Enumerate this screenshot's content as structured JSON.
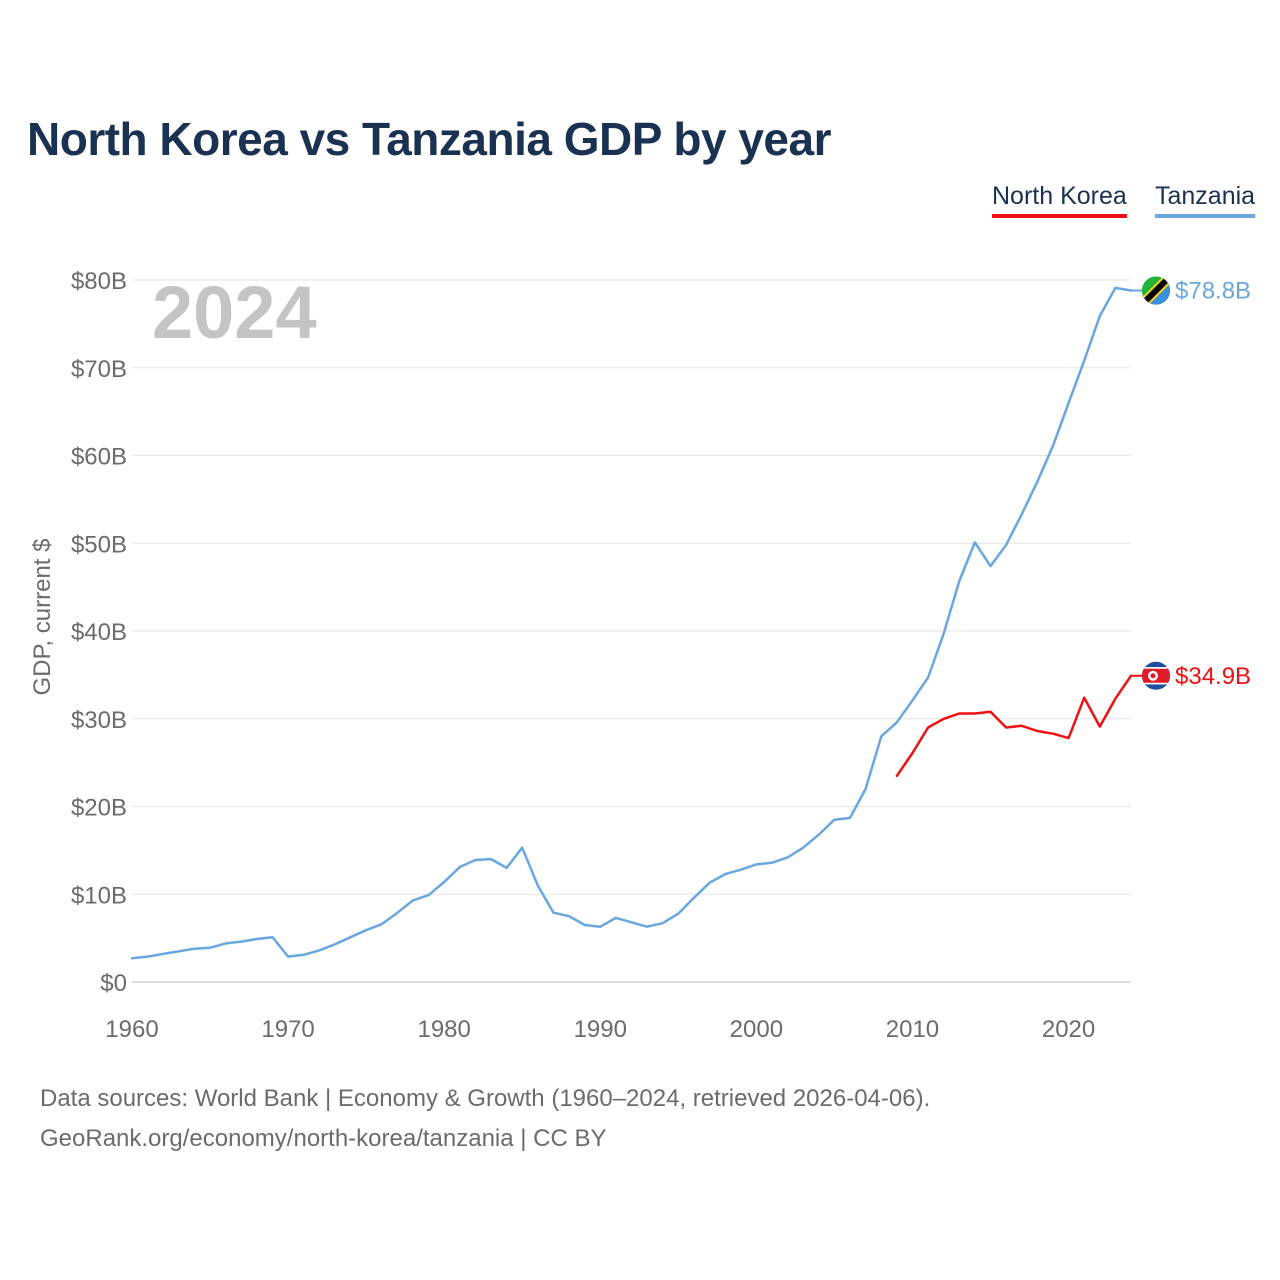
{
  "title": "North Korea vs Tanzania GDP by year",
  "footer": {
    "line1": "Data sources: World Bank | Economy & Growth (1960–2024, retrieved 2026-04-06).",
    "line2": "GeoRank.org/economy/north-korea/tanzania | CC BY"
  },
  "chart_data": {
    "type": "line",
    "title": "North Korea vs Tanzania GDP by year",
    "ylabel": "GDP, current $",
    "xlabel": "",
    "year_label": "2024",
    "xlim": [
      1960,
      2024
    ],
    "ylim": [
      0,
      80
    ],
    "units": "billions of current US$",
    "x_ticks": [
      1960,
      1970,
      1980,
      1990,
      2000,
      2010,
      2020
    ],
    "y_ticks": [
      0,
      10,
      20,
      30,
      40,
      50,
      60,
      70,
      80
    ],
    "y_tick_labels": [
      "$0",
      "$10B",
      "$20B",
      "$30B",
      "$40B",
      "$50B",
      "$60B",
      "$70B",
      "$80B"
    ],
    "legend_position": "top-right",
    "grid": true,
    "series": [
      {
        "name": "North Korea",
        "color": "#ee1111",
        "end_label": "$34.9B",
        "flag_icon": "north-korea-flag-icon",
        "points": [
          [
            2009,
            23.5
          ],
          [
            2010,
            26.1
          ],
          [
            2011,
            29.0
          ],
          [
            2012,
            30.0
          ],
          [
            2013,
            30.6
          ],
          [
            2014,
            30.6
          ],
          [
            2015,
            30.8
          ],
          [
            2016,
            29.0
          ],
          [
            2017,
            29.2
          ],
          [
            2018,
            28.6
          ],
          [
            2019,
            28.3
          ],
          [
            2020,
            27.8
          ],
          [
            2021,
            32.4
          ],
          [
            2022,
            29.1
          ],
          [
            2023,
            32.3
          ],
          [
            2024,
            34.9
          ]
        ]
      },
      {
        "name": "Tanzania",
        "color": "#6aa6e0",
        "end_label": "$78.8B",
        "flag_icon": "tanzania-flag-icon",
        "points": [
          [
            1960,
            2.7
          ],
          [
            1961,
            2.9
          ],
          [
            1962,
            3.2
          ],
          [
            1963,
            3.5
          ],
          [
            1964,
            3.8
          ],
          [
            1965,
            3.9
          ],
          [
            1966,
            4.4
          ],
          [
            1967,
            4.6
          ],
          [
            1968,
            4.9
          ],
          [
            1969,
            5.1
          ],
          [
            1970,
            2.9
          ],
          [
            1971,
            3.1
          ],
          [
            1972,
            3.6
          ],
          [
            1973,
            4.3
          ],
          [
            1974,
            5.1
          ],
          [
            1975,
            5.9
          ],
          [
            1976,
            6.6
          ],
          [
            1977,
            7.9
          ],
          [
            1978,
            9.3
          ],
          [
            1979,
            9.9
          ],
          [
            1980,
            11.4
          ],
          [
            1981,
            13.1
          ],
          [
            1982,
            13.9
          ],
          [
            1983,
            14.0
          ],
          [
            1984,
            13.0
          ],
          [
            1985,
            15.3
          ],
          [
            1986,
            11.0
          ],
          [
            1987,
            7.9
          ],
          [
            1988,
            7.5
          ],
          [
            1989,
            6.5
          ],
          [
            1990,
            6.3
          ],
          [
            1991,
            7.3
          ],
          [
            1992,
            6.8
          ],
          [
            1993,
            6.3
          ],
          [
            1994,
            6.7
          ],
          [
            1995,
            7.8
          ],
          [
            1996,
            9.6
          ],
          [
            1997,
            11.3
          ],
          [
            1998,
            12.3
          ],
          [
            1999,
            12.8
          ],
          [
            2000,
            13.4
          ],
          [
            2001,
            13.6
          ],
          [
            2002,
            14.2
          ],
          [
            2003,
            15.3
          ],
          [
            2004,
            16.8
          ],
          [
            2005,
            18.5
          ],
          [
            2006,
            18.7
          ],
          [
            2007,
            22.0
          ],
          [
            2008,
            28.0
          ],
          [
            2009,
            29.6
          ],
          [
            2010,
            32.1
          ],
          [
            2011,
            34.7
          ],
          [
            2012,
            39.7
          ],
          [
            2013,
            45.7
          ],
          [
            2014,
            50.1
          ],
          [
            2015,
            47.4
          ],
          [
            2016,
            49.8
          ],
          [
            2017,
            53.3
          ],
          [
            2018,
            57.0
          ],
          [
            2019,
            61.1
          ],
          [
            2020,
            66.0
          ],
          [
            2021,
            70.8
          ],
          [
            2022,
            75.9
          ],
          [
            2023,
            79.1
          ],
          [
            2024,
            78.8
          ]
        ]
      }
    ]
  }
}
